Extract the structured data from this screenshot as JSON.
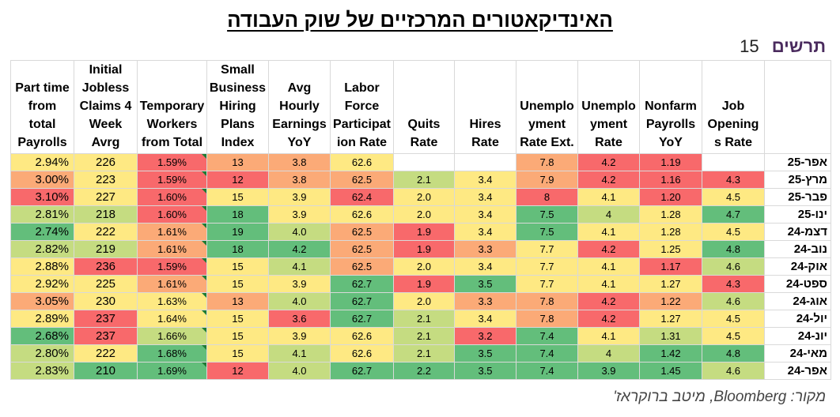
{
  "title": "האינדיקאטורים המרכזיים של שוק העבודה",
  "brand": {
    "name": "תרשים",
    "number": "15"
  },
  "source": "מקור: Bloomberg, מיטב ברוקראז'",
  "headers": [
    [
      "Part time",
      "from",
      "total",
      "Payrolls"
    ],
    [
      "Initial",
      "Jobless",
      "Claims 4",
      "Week",
      "Avrg"
    ],
    [
      "Temporary",
      "Workers",
      "from Total"
    ],
    [
      "Small",
      "Business",
      "Hiring",
      "Plans",
      "Index"
    ],
    [
      "Avg",
      "Hourly",
      "Earnings",
      "YoY"
    ],
    [
      "Labor",
      "Force",
      "Participat",
      "ion Rate"
    ],
    [
      "Quits",
      "Rate"
    ],
    [
      "Hires",
      "Rate"
    ],
    [
      "Unemplo",
      "yment",
      "Rate Ext."
    ],
    [
      "Unemplo",
      "yment",
      "Rate"
    ],
    [
      "Nonfarm",
      "Payrolls",
      "YoY"
    ],
    [
      "Job",
      "Opening",
      "s Rate"
    ]
  ],
  "rows": [
    {
      "label": "אפר-25",
      "values": [
        "2.94%",
        "226",
        "1.59%",
        "13",
        "3.8",
        "62.6",
        "",
        "",
        "7.8",
        "4.2",
        "1.19",
        ""
      ]
    },
    {
      "label": "מרץ-25",
      "values": [
        "3.00%",
        "223",
        "1.59%",
        "12",
        "3.8",
        "62.5",
        "2.1",
        "3.4",
        "7.9",
        "4.2",
        "1.16",
        "4.3"
      ]
    },
    {
      "label": "פבר-25",
      "values": [
        "3.10%",
        "227",
        "1.60%",
        "15",
        "3.9",
        "62.4",
        "2.0",
        "3.4",
        "8",
        "4.1",
        "1.20",
        "4.5"
      ]
    },
    {
      "label": "ינו-25",
      "values": [
        "2.81%",
        "218",
        "1.60%",
        "18",
        "3.9",
        "62.6",
        "2.0",
        "3.4",
        "7.5",
        "4",
        "1.28",
        "4.7"
      ]
    },
    {
      "label": "דצמ-24",
      "values": [
        "2.74%",
        "222",
        "1.61%",
        "19",
        "4.0",
        "62.5",
        "1.9",
        "3.4",
        "7.5",
        "4.1",
        "1.28",
        "4.5"
      ]
    },
    {
      "label": "נוב-24",
      "values": [
        "2.82%",
        "219",
        "1.61%",
        "18",
        "4.2",
        "62.5",
        "1.9",
        "3.3",
        "7.7",
        "4.2",
        "1.25",
        "4.8"
      ]
    },
    {
      "label": "אוק-24",
      "values": [
        "2.88%",
        "236",
        "1.59%",
        "15",
        "4.1",
        "62.5",
        "2.0",
        "3.4",
        "7.7",
        "4.1",
        "1.17",
        "4.6"
      ]
    },
    {
      "label": "ספט-24",
      "values": [
        "2.92%",
        "225",
        "1.61%",
        "15",
        "3.9",
        "62.7",
        "1.9",
        "3.5",
        "7.7",
        "4.1",
        "1.27",
        "4.3"
      ]
    },
    {
      "label": "אוג-24",
      "values": [
        "3.05%",
        "230",
        "1.63%",
        "13",
        "4.0",
        "62.7",
        "2.0",
        "3.3",
        "7.8",
        "4.2",
        "1.22",
        "4.6"
      ]
    },
    {
      "label": "יול-24",
      "values": [
        "2.89%",
        "237",
        "1.64%",
        "15",
        "3.6",
        "62.7",
        "2.1",
        "3.4",
        "7.8",
        "4.2",
        "1.27",
        "4.5"
      ]
    },
    {
      "label": "יונ-24",
      "values": [
        "2.68%",
        "237",
        "1.66%",
        "15",
        "3.9",
        "62.6",
        "2.1",
        "3.2",
        "7.4",
        "4.1",
        "1.31",
        "4.5"
      ]
    },
    {
      "label": "מאי-24",
      "values": [
        "2.80%",
        "222",
        "1.68%",
        "15",
        "4.1",
        "62.6",
        "2.1",
        "3.5",
        "7.4",
        "4",
        "1.42",
        "4.8"
      ]
    },
    {
      "label": "אפר-24",
      "values": [
        "2.83%",
        "210",
        "1.69%",
        "12",
        "4.0",
        "62.7",
        "2.2",
        "3.5",
        "7.4",
        "3.9",
        "1.45",
        "4.6"
      ]
    }
  ],
  "colors": {
    "dark_green": "#63be7b",
    "light_green": "#c5dc81",
    "yellow": "#fee983",
    "orange": "#fbaa77",
    "red": "#f8696b"
  },
  "cell_colors": [
    [
      "yellow",
      "yellow",
      "red",
      "orange",
      "orange",
      "yellow",
      "",
      "",
      "orange",
      "red",
      "red",
      ""
    ],
    [
      "orange",
      "yellow",
      "red",
      "red",
      "orange",
      "orange",
      "light_green",
      "yellow",
      "orange",
      "red",
      "red",
      "red"
    ],
    [
      "red",
      "yellow",
      "red",
      "yellow",
      "yellow",
      "red",
      "yellow",
      "yellow",
      "red",
      "yellow",
      "red",
      "yellow"
    ],
    [
      "light_green",
      "light_green",
      "red",
      "dark_green",
      "yellow",
      "yellow",
      "yellow",
      "yellow",
      "dark_green",
      "light_green",
      "yellow",
      "dark_green"
    ],
    [
      "dark_green",
      "yellow",
      "orange",
      "dark_green",
      "light_green",
      "orange",
      "red",
      "yellow",
      "dark_green",
      "yellow",
      "yellow",
      "yellow"
    ],
    [
      "light_green",
      "light_green",
      "orange",
      "dark_green",
      "dark_green",
      "orange",
      "red",
      "orange",
      "yellow",
      "red",
      "yellow",
      "dark_green"
    ],
    [
      "yellow",
      "red",
      "red",
      "yellow",
      "light_green",
      "orange",
      "yellow",
      "yellow",
      "yellow",
      "yellow",
      "red",
      "light_green"
    ],
    [
      "yellow",
      "yellow",
      "orange",
      "yellow",
      "yellow",
      "dark_green",
      "red",
      "dark_green",
      "yellow",
      "yellow",
      "yellow",
      "red"
    ],
    [
      "orange",
      "yellow",
      "yellow",
      "orange",
      "light_green",
      "dark_green",
      "yellow",
      "orange",
      "orange",
      "red",
      "orange",
      "light_green"
    ],
    [
      "yellow",
      "red",
      "yellow",
      "yellow",
      "red",
      "dark_green",
      "light_green",
      "yellow",
      "orange",
      "red",
      "yellow",
      "yellow"
    ],
    [
      "dark_green",
      "red",
      "light_green",
      "yellow",
      "yellow",
      "yellow",
      "light_green",
      "red",
      "dark_green",
      "yellow",
      "light_green",
      "yellow"
    ],
    [
      "light_green",
      "yellow",
      "dark_green",
      "yellow",
      "light_green",
      "yellow",
      "light_green",
      "dark_green",
      "dark_green",
      "light_green",
      "dark_green",
      "dark_green"
    ],
    [
      "light_green",
      "dark_green",
      "dark_green",
      "red",
      "light_green",
      "dark_green",
      "dark_green",
      "dark_green",
      "dark_green",
      "dark_green",
      "dark_green",
      "light_green"
    ]
  ]
}
